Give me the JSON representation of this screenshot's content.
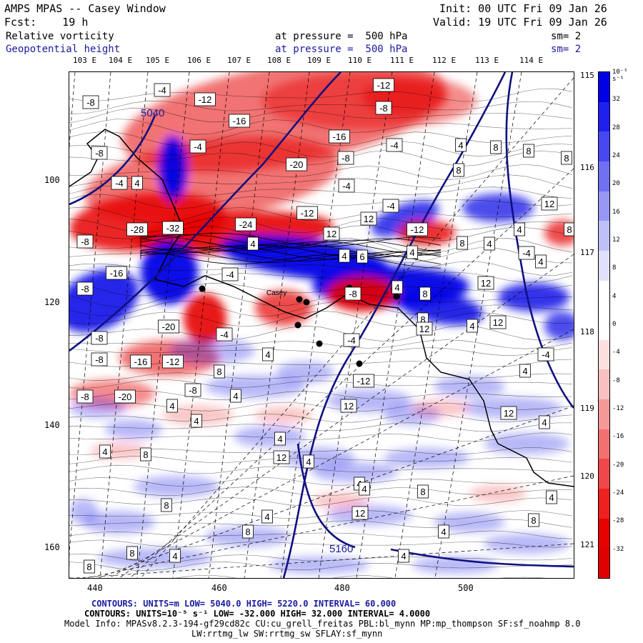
{
  "header": {
    "title": "AMPS MPAS -- Casey Window",
    "forecast": "Fcst:    19 h",
    "init": "Init: 00 UTC Fri 09 Jan 26",
    "valid": "Valid: 19 UTC Fri 09 Jan 26"
  },
  "fields": [
    {
      "name": "Relative vorticity",
      "pressure": "at pressure =  500 hPa",
      "sm": "sm= 2",
      "color": "#000000"
    },
    {
      "name": "Geopotential height",
      "pressure": "at pressure =  500 hPa",
      "sm": "sm= 2",
      "color": "#1a1aa0"
    }
  ],
  "map": {
    "top_lon_labels": [
      "103 E",
      "104 E",
      "105 E",
      "106 E",
      "107 E",
      "108 E",
      "109 E",
      "110 E",
      "111 E",
      "112 E",
      "113 E",
      "114 E"
    ],
    "right_lon_labels": [
      "115 E",
      "116 E",
      "117 E",
      "118 E",
      "119 E",
      "120 E",
      "121 E"
    ],
    "x_ticks": [
      "440",
      "460",
      "480",
      "500"
    ],
    "y_ticks": [
      "100",
      "120",
      "140",
      "160"
    ],
    "height_contour_labels": [
      "5040",
      "5160"
    ],
    "station_label": "Casey",
    "colors": {
      "positive": "#0000e6",
      "negative": "#e60000",
      "height_line": "#101080",
      "border": "#000000"
    }
  },
  "colorbar": {
    "unit": "10⁻⁵ s⁻¹",
    "levels": [
      "32",
      "28",
      "24",
      "20",
      "16",
      "12",
      "8",
      "4",
      "0",
      "-4",
      "-8",
      "-12",
      "-16",
      "-20",
      "-24",
      "-28",
      "-32"
    ],
    "colors": [
      "#0000e6",
      "#2020ee",
      "#4848f0",
      "#7070f2",
      "#9898f4",
      "#c0c0f8",
      "#e0e0fc",
      "#ffffff",
      "#ffffff",
      "#fce0e0",
      "#f8c0c0",
      "#f49898",
      "#f27070",
      "#f04848",
      "#ee2020",
      "#e60000",
      "#e00000"
    ]
  },
  "footer": {
    "line1": "CONTOURS: UNITS=m  LOW=  5040.0      HIGH=  5220.0      INTERVAL=   60.000",
    "line2": "CONTOURS: UNITS=10⁻⁵ s⁻¹  LOW= -32.000      HIGH=  32.000     INTERVAL=   4.0000",
    "line3": "Model Info: MPASv8.2.3-194-gf29cd82c CU:cu_grell_freitas PBL:bl_mynn MP:mp_thompson SF:sf_noahmp 8.0",
    "line4": "LW:rrtmg_lw SW:rrtmg_sw SFLAY:sf_mynn"
  }
}
